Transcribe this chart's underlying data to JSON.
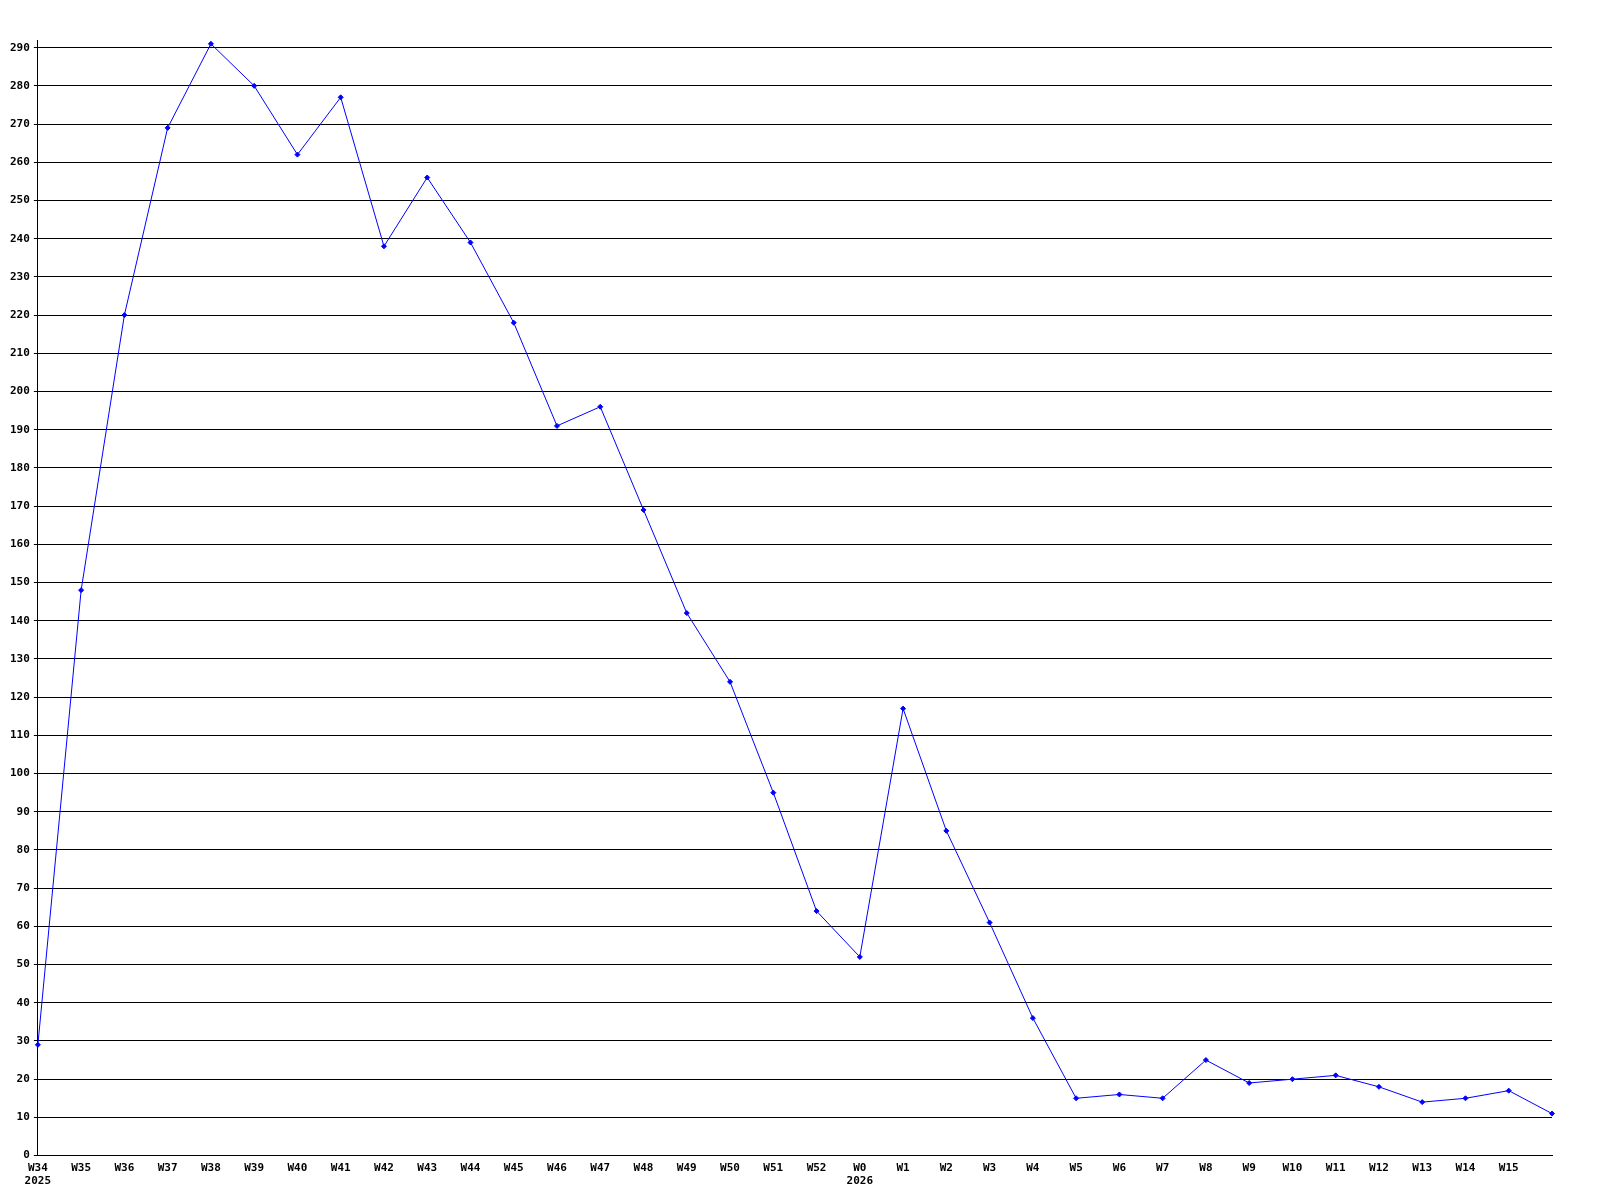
{
  "chart_data": {
    "type": "line",
    "categories": [
      "W34\n2025",
      "W35",
      "W36",
      "W37",
      "W38",
      "W39",
      "W40",
      "W41",
      "W42",
      "W43",
      "W44",
      "W45",
      "W46",
      "W47",
      "W48",
      "W49",
      "W50",
      "W51",
      "W52",
      "W0\n2026",
      "W1",
      "W2",
      "W3",
      "W4",
      "W5",
      "W6",
      "W7",
      "W8",
      "W9",
      "W10",
      "W11",
      "W12",
      "W13",
      "W14",
      "W15",
      null
    ],
    "series": [
      {
        "color": "#0000ff",
        "values": [
          29,
          148,
          220,
          269,
          291,
          280,
          262,
          277,
          238,
          256,
          239,
          218,
          191,
          196,
          169,
          142,
          124,
          95,
          64,
          52,
          117,
          85,
          61,
          36,
          15,
          16,
          15,
          25,
          19,
          20,
          21,
          18,
          14,
          15,
          17,
          11
        ]
      }
    ],
    "ylim": [
      0,
      292
    ],
    "yticks": [
      0,
      10,
      20,
      30,
      40,
      50,
      60,
      70,
      80,
      90,
      100,
      110,
      120,
      130,
      140,
      150,
      160,
      170,
      180,
      190,
      200,
      210,
      220,
      230,
      240,
      250,
      260,
      270,
      280,
      290
    ],
    "grid": "y",
    "legend": false,
    "marker": "diamond",
    "line_style": "solid"
  }
}
